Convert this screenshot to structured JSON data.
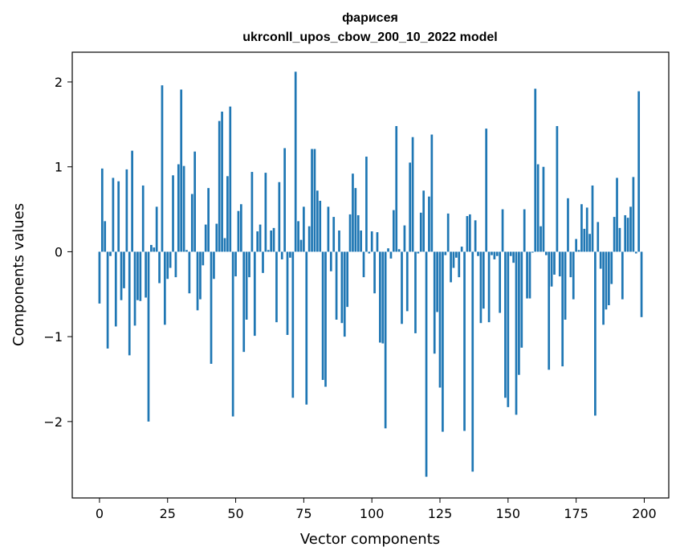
{
  "chart_data": {
    "type": "bar",
    "title": "фарисея",
    "subtitle": "ukrconll_upos_cbow_200_10_2022 model",
    "xlabel": "Vector components",
    "ylabel": "Components values",
    "xlim": [
      -10,
      209
    ],
    "ylim": [
      -2.9,
      2.35
    ],
    "grid": false,
    "legend": "none",
    "bar_color": "#1f77b4",
    "xticks": [
      0,
      25,
      50,
      75,
      100,
      125,
      150,
      175,
      200
    ],
    "xtick_labels": [
      "0",
      "25",
      "50",
      "75",
      "100",
      "125",
      "150",
      "175",
      "200"
    ],
    "yticks": [
      -2,
      -1,
      0,
      1,
      2
    ],
    "ytick_labels": [
      "−2",
      "−1",
      "0",
      "1",
      "2"
    ],
    "x": [
      0,
      1,
      2,
      3,
      4,
      5,
      6,
      7,
      8,
      9,
      10,
      11,
      12,
      13,
      14,
      15,
      16,
      17,
      18,
      19,
      20,
      21,
      22,
      23,
      24,
      25,
      26,
      27,
      28,
      29,
      30,
      31,
      32,
      33,
      34,
      35,
      36,
      37,
      38,
      39,
      40,
      41,
      42,
      43,
      44,
      45,
      46,
      47,
      48,
      49,
      50,
      51,
      52,
      53,
      54,
      55,
      56,
      57,
      58,
      59,
      60,
      61,
      62,
      63,
      64,
      65,
      66,
      67,
      68,
      69,
      70,
      71,
      72,
      73,
      74,
      75,
      76,
      77,
      78,
      79,
      80,
      81,
      82,
      83,
      84,
      85,
      86,
      87,
      88,
      89,
      90,
      91,
      92,
      93,
      94,
      95,
      96,
      97,
      98,
      99,
      100,
      101,
      102,
      103,
      104,
      105,
      106,
      107,
      108,
      109,
      110,
      111,
      112,
      113,
      114,
      115,
      116,
      117,
      118,
      119,
      120,
      121,
      122,
      123,
      124,
      125,
      126,
      127,
      128,
      129,
      130,
      131,
      132,
      133,
      134,
      135,
      136,
      137,
      138,
      139,
      140,
      141,
      142,
      143,
      144,
      145,
      146,
      147,
      148,
      149,
      150,
      151,
      152,
      153,
      154,
      155,
      156,
      157,
      158,
      159,
      160,
      161,
      162,
      163,
      164,
      165,
      166,
      167,
      168,
      169,
      170,
      171,
      172,
      173,
      174,
      175,
      176,
      177,
      178,
      179,
      180,
      181,
      182,
      183,
      184,
      185,
      186,
      187,
      188,
      189,
      190,
      191,
      192,
      193,
      194,
      195,
      196,
      197,
      198,
      199
    ],
    "values": [
      -0.61,
      0.98,
      0.36,
      -1.14,
      -0.05,
      0.87,
      -0.88,
      0.83,
      -0.57,
      -0.43,
      0.97,
      -1.22,
      1.19,
      -0.87,
      -0.57,
      -0.58,
      0.78,
      -0.54,
      -2.0,
      0.08,
      0.05,
      0.53,
      -0.37,
      1.96,
      -0.86,
      -0.32,
      -0.19,
      0.9,
      -0.3,
      1.03,
      1.91,
      1.01,
      0.02,
      -0.49,
      0.68,
      1.18,
      -0.69,
      -0.56,
      -0.16,
      0.32,
      0.75,
      -1.32,
      -0.32,
      0.33,
      1.54,
      1.65,
      0.16,
      0.89,
      1.71,
      -1.94,
      -0.29,
      0.48,
      0.56,
      -1.18,
      -0.8,
      -0.3,
      0.94,
      -0.99,
      0.24,
      0.32,
      -0.25,
      0.93,
      0.02,
      0.25,
      0.28,
      -0.83,
      0.82,
      -0.09,
      1.22,
      -0.98,
      -0.07,
      -1.72,
      2.12,
      0.36,
      0.14,
      0.53,
      -1.8,
      0.3,
      1.21,
      1.21,
      0.72,
      0.6,
      -1.51,
      -1.59,
      0.53,
      -0.23,
      0.41,
      -0.8,
      0.25,
      -0.84,
      -1.0,
      -0.65,
      0.44,
      0.92,
      0.75,
      0.43,
      0.25,
      -0.3,
      1.12,
      -0.02,
      0.24,
      -0.49,
      0.23,
      -1.07,
      -1.08,
      -2.08,
      0.04,
      -0.08,
      0.49,
      1.48,
      0.03,
      -0.85,
      0.31,
      -0.7,
      1.05,
      1.35,
      -0.96,
      -0.02,
      0.46,
      0.72,
      -2.65,
      0.65,
      1.38,
      -1.2,
      -0.71,
      -1.6,
      -2.12,
      -0.04,
      0.45,
      -0.36,
      -0.19,
      -0.07,
      -0.3,
      0.06,
      -2.11,
      0.42,
      0.44,
      -2.59,
      0.37,
      -0.05,
      -0.84,
      -0.67,
      1.45,
      -0.83,
      -0.04,
      -0.09,
      -0.05,
      -0.72,
      0.5,
      -1.72,
      -1.83,
      -0.05,
      -0.13,
      -1.92,
      -1.45,
      -1.13,
      0.5,
      -0.55,
      -0.55,
      -0.01,
      1.92,
      1.03,
      0.3,
      1.0,
      -0.04,
      -1.39,
      -0.41,
      -0.27,
      1.48,
      -0.29,
      -1.35,
      -0.8,
      0.63,
      -0.3,
      -0.56,
      0.15,
      0.02,
      0.56,
      0.27,
      0.52,
      0.21,
      0.78,
      -1.93,
      0.35,
      -0.2,
      -0.86,
      -0.68,
      -0.63,
      -0.38,
      0.41,
      0.87,
      0.28,
      -0.56,
      0.43,
      0.4,
      0.53,
      0.88,
      -0.02,
      1.89,
      -0.77
    ]
  }
}
